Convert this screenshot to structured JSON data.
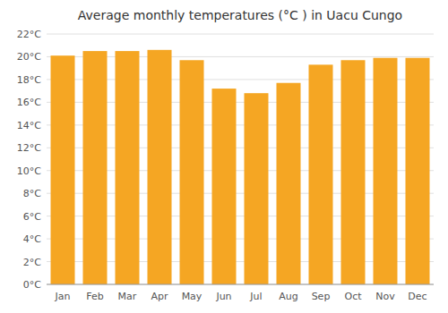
{
  "chart_data": {
    "type": "bar",
    "title": "Average monthly temperatures (°C ) in Uacu Cungo",
    "categories": [
      "Jan",
      "Feb",
      "Mar",
      "Apr",
      "May",
      "Jun",
      "Jul",
      "Aug",
      "Sep",
      "Oct",
      "Nov",
      "Dec"
    ],
    "values": [
      20.1,
      20.5,
      20.5,
      20.6,
      19.7,
      17.2,
      16.8,
      17.7,
      19.3,
      19.7,
      19.9,
      19.9
    ],
    "color": "#F5A623",
    "ylim": [
      0,
      22
    ],
    "yticks": [
      {
        "value": 0,
        "label": "0°C"
      },
      {
        "value": 2,
        "label": "2°C"
      },
      {
        "value": 4,
        "label": "4°C"
      },
      {
        "value": 6,
        "label": "6°C"
      },
      {
        "value": 8,
        "label": "8°C"
      },
      {
        "value": 10,
        "label": "10°C"
      },
      {
        "value": 12,
        "label": "12°C"
      },
      {
        "value": 14,
        "label": "14°C"
      },
      {
        "value": 16,
        "label": "16°C"
      },
      {
        "value": 18,
        "label": "18°C"
      },
      {
        "value": 20,
        "label": "20°C"
      },
      {
        "value": 22,
        "label": "22°C"
      }
    ],
    "grid": true
  }
}
